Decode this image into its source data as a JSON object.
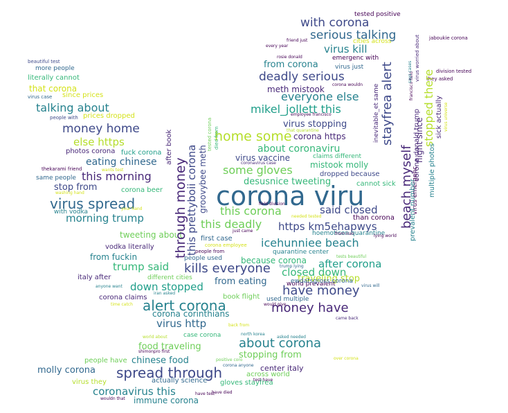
{
  "palette": {
    "c1": "#440154",
    "c2": "#482878",
    "c3": "#3e4989",
    "c4": "#31688e",
    "c5": "#26828e",
    "c6": "#1f9e89",
    "c7": "#35b779",
    "c8": "#6ece58",
    "c9": "#b5de2b",
    "c10": "#d4e21a"
  },
  "words": {
    "w001": "corona viru",
    "w002": "spread through",
    "w003": "virus spread",
    "w004": "alert corona",
    "w005": "home some",
    "w006": "money have",
    "w007": "have money",
    "w008": "about corona",
    "w009": "kills everyone",
    "w010": "with corona",
    "w011": "serious talking",
    "w012": "deadly serious",
    "w013": "mikel_jollett this",
    "w014": "everyone else",
    "w015": "money home",
    "w016": "talking about",
    "w017": "some gloves",
    "w018": "this deadly",
    "w019": "this corona",
    "w020": "icehunniee beach",
    "w021": "this morning",
    "w022": "morning trump",
    "w023": "https km5ehapwys",
    "w024": "said closed",
    "w025": "closed down",
    "w026": "after corona",
    "w027": "virus http",
    "w028": "coronavirus this",
    "w029": "trump said",
    "w030": "down stopped",
    "w031": "about coronaviru",
    "w032": "virus kill",
    "w033": "meth mistook",
    "w034": "from corona",
    "w035": "virus stopping",
    "w036": "eating chinese",
    "w037": "else https",
    "w038": "stop from",
    "w039": "virus vaccine",
    "w040": "mistook molly",
    "w041": "desusnice tweeting",
    "w042": "corona https",
    "w043": "traveling stop",
    "w044": "from eating",
    "w045": "because corona",
    "w046": "food traveling",
    "w047": "stopping from",
    "w048": "chinese food",
    "w049": "molly corona",
    "w050": "corona corinthians",
    "w051": "from fuckin",
    "w052": "tweeting about",
    "w053": "immune corona",
    "w054": "corona beer",
    "w055": "vodka literally",
    "w056": "italy after",
    "w057": "corona claims",
    "w058": "people have",
    "w059": "center italy",
    "w060": "across world",
    "w061": "gloves stayfrea",
    "w062": "actually science",
    "w063": "virus they",
    "w064": "that corona",
    "w065": "since prices",
    "w066": "prices dropped",
    "w067": "literally cannot",
    "w068": "more people",
    "w069": "beautiful test",
    "w070": "virus case",
    "w071": "people with",
    "w072": "photos corona",
    "w073": "fuck corona",
    "w074": "thekarami friend",
    "w075": "wants test",
    "w076": "same people",
    "w077": "with vodka",
    "w078": "your hand",
    "w079": "first case",
    "w080": "corona employee",
    "w081": "people from",
    "w082": "people used",
    "w083": "different cities",
    "w084": "book flight",
    "w085": "iran asked",
    "w086": "anyone want",
    "w087": "time catch",
    "w088": "hoemoticon quarantine",
    "w089": "quarantine center",
    "w090": "world prevalent",
    "w091": "ewdatsgross corona",
    "w092": "used multiple",
    "w093": "would give",
    "w094": "came back",
    "w095": "back from",
    "w096": "case corona",
    "w097": "world about",
    "w098": "north korea",
    "w099": "asked needed",
    "w100": "shimonpro first",
    "w101": "over corona",
    "w102": "positive coro",
    "w103": "corona anyone",
    "w104": "test have",
    "w105": "have test",
    "w106": "have died",
    "w107": "wouldn that",
    "w108": "washing hand",
    "w109": "field division",
    "w110": "needed tested",
    "w111": "just came",
    "w112": "from iran",
    "w113": "lying world",
    "w114": "tests beautiful",
    "w115": "trump lying",
    "w116": "virus will",
    "w117": "dropped because",
    "w118": "cannot sick",
    "w119": "than corona",
    "w120": "claims different",
    "w121": "coronavirus case",
    "w122": "tested positive",
    "w123": "friend just",
    "w124": "every year",
    "w125": "cities across",
    "w126": "rosie donald",
    "w127": "emergenc with",
    "w128": "virus just",
    "w129": "corona wouldn",
    "w130": "employee francisco",
    "w131": "that quarantine",
    "w132": "jaboukie corona",
    "w133": "division tested",
    "w134": "they asked",
    "w135": "through money",
    "w136": "this prettyboii corona",
    "w137": "groovybee meth",
    "w138": "after book",
    "w139": "tested corona",
    "w140": "died from",
    "w141": "beach myself",
    "w142": "stayfrea alert",
    "w143": "inevitable_et same",
    "w144": "stopped there",
    "w145": "flight since",
    "w146": "corona donald trump",
    "w147": "virus emergenc",
    "w148": "multiple photos",
    "w149": "sick actually",
    "w150": "prevalent number",
    "w151": "virus worried about",
    "w152": "francisco field",
    "w153": "says cases",
    "w154": "virus universe"
  }
}
